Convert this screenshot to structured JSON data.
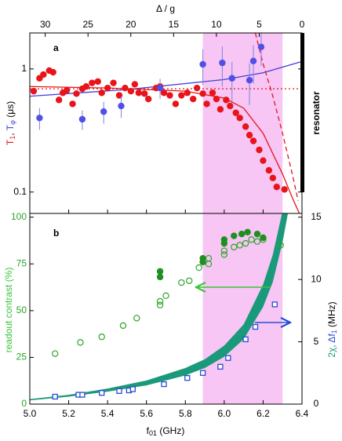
{
  "chart_data": [
    {
      "type": "scatter",
      "panel_label": "a",
      "xlim": [
        5.0,
        6.4
      ],
      "x2label": "Δ / g",
      "x2lim": [
        31.8,
        0
      ],
      "x2ticks": [
        30,
        25,
        20,
        15,
        10,
        5,
        0
      ],
      "ylabel_parts": [
        "T",
        "1",
        ", ",
        "T",
        "φ",
        " (μs)"
      ],
      "y2label": "resonator",
      "log_y": true,
      "ylim": [
        0.067,
        1.96
      ],
      "yticks": [
        0.1,
        1
      ],
      "shade": [
        5.89,
        6.3
      ],
      "shade_color": "#f7c6f4",
      "series": [
        {
          "style": "dotted",
          "color": "#e8141a",
          "x": [
            5.0,
            6.4
          ],
          "values": [
            0.69,
            0.69
          ]
        },
        {
          "style": "line",
          "color": "#4040d8",
          "x": [
            5.0,
            5.5,
            6.0,
            6.2,
            6.4
          ],
          "values": [
            0.6,
            0.68,
            0.82,
            0.93,
            1.15
          ]
        },
        {
          "style": "line",
          "color": "#e8141a",
          "x": [
            5.0,
            5.4,
            5.8,
            6.0,
            6.1,
            6.2,
            6.3,
            6.35,
            6.4
          ],
          "values": [
            0.72,
            0.7,
            0.66,
            0.58,
            0.48,
            0.3,
            0.14,
            0.09,
            0.06
          ]
        },
        {
          "style": "dashed",
          "color": "#e8141a",
          "x": [
            6.16,
            6.2,
            6.25,
            6.3,
            6.35,
            6.38
          ],
          "values": [
            1.96,
            1.1,
            0.6,
            0.3,
            0.14,
            0.085
          ]
        },
        {
          "style": "filled-circle",
          "color": "#e8141a",
          "x": [
            5.02,
            5.05,
            5.07,
            5.1,
            5.12,
            5.15,
            5.17,
            5.19,
            5.22,
            5.24,
            5.27,
            5.29,
            5.32,
            5.35,
            5.37,
            5.4,
            5.43,
            5.46,
            5.49,
            5.52,
            5.54,
            5.56,
            5.59,
            5.61,
            5.65,
            5.67,
            5.69,
            5.72,
            5.75,
            5.78,
            5.81,
            5.84,
            5.86,
            5.89,
            5.91,
            5.94,
            5.96,
            5.98,
            6.01,
            6.03,
            6.06,
            6.08,
            6.11,
            6.13,
            6.15,
            6.18,
            6.2,
            6.23,
            6.25,
            6.27,
            6.31
          ],
          "values": [
            0.66,
            0.84,
            0.9,
            0.97,
            0.94,
            0.56,
            0.64,
            0.67,
            0.52,
            0.63,
            0.69,
            0.72,
            0.77,
            0.79,
            0.64,
            0.7,
            0.77,
            0.61,
            0.7,
            0.66,
            0.75,
            0.64,
            0.63,
            0.57,
            0.7,
            0.72,
            0.64,
            0.61,
            0.52,
            0.61,
            0.64,
            0.57,
            0.7,
            0.63,
            0.52,
            0.64,
            0.57,
            0.47,
            0.56,
            0.5,
            0.44,
            0.4,
            0.34,
            0.29,
            0.26,
            0.22,
            0.18,
            0.15,
            0.13,
            0.11,
            0.105
          ]
        },
        {
          "style": "filled-circle",
          "color": "#5050e8",
          "error_color": "#8080e0",
          "x": [
            5.05,
            5.27,
            5.38,
            5.47,
            5.67,
            5.89,
            5.99,
            6.04,
            6.13,
            6.15,
            6.19
          ],
          "values": [
            0.4,
            0.39,
            0.45,
            0.5,
            0.7,
            1.09,
            1.12,
            0.84,
            0.81,
            1.16,
            1.51
          ],
          "errors": [
            0.08,
            0.07,
            0.09,
            0.1,
            0.13,
            0.35,
            0.4,
            0.3,
            0.3,
            0.4,
            0.45
          ]
        }
      ]
    },
    {
      "type": "scatter",
      "panel_label": "b",
      "xlabel_parts": [
        "f",
        "01",
        " (GHz)"
      ],
      "xlim": [
        5.0,
        6.4
      ],
      "xticks": [
        {
          "value": 5.0,
          "label": "5.0"
        },
        {
          "value": 5.2,
          "label": "5.2"
        },
        {
          "value": 5.4,
          "label": "5.4"
        },
        {
          "value": 5.6,
          "label": "5.6"
        },
        {
          "value": 5.8,
          "label": "5.8"
        },
        {
          "value": 6.0,
          "label": "6.0"
        },
        {
          "value": 6.2,
          "label": "6.2"
        },
        {
          "value": 6.4,
          "label": "6.4"
        }
      ],
      "ylabel": "readout contrast (%)",
      "ylim": [
        0,
        102
      ],
      "yticks": [
        0,
        25,
        50,
        75,
        100
      ],
      "y2label_parts": [
        "2χ",
        ", Δf",
        "1",
        " (MHz)"
      ],
      "y2lim": [
        0,
        15.3
      ],
      "y2ticks": [
        0,
        5,
        10,
        15
      ],
      "shade": [
        5.89,
        6.3
      ],
      "shade_color": "#f7c6f4",
      "series": [
        {
          "style": "band",
          "axis": "y2",
          "color": "#1a9a7a",
          "x": [
            5.0,
            5.2,
            5.4,
            5.6,
            5.8,
            5.9,
            6.0,
            6.1,
            6.2,
            6.25,
            6.3,
            6.33
          ],
          "values": [
            0.3,
            0.6,
            1.0,
            1.5,
            2.3,
            2.9,
            3.8,
            5.2,
            7.8,
            9.8,
            13,
            15.5
          ],
          "upper": [
            0.4,
            0.75,
            1.25,
            1.9,
            2.9,
            3.6,
            4.7,
            6.4,
            9.6,
            12,
            15.5,
            17
          ]
        },
        {
          "style": "open-circle",
          "color": "#2aa52a",
          "x": [
            5.13,
            5.26,
            5.37,
            5.48,
            5.55,
            5.67,
            5.67,
            5.7,
            5.78,
            5.82,
            5.87,
            5.92,
            5.92,
            6.0,
            6.0,
            6.05,
            6.08,
            6.11,
            6.14,
            6.17,
            6.2,
            6.29
          ],
          "values": [
            27,
            33,
            36,
            42,
            46,
            55,
            53,
            58,
            65,
            66,
            73,
            75,
            78,
            82,
            80,
            84,
            85,
            86,
            88,
            87,
            88,
            85
          ]
        },
        {
          "style": "filled-circle",
          "color": "#1f8f1f",
          "x": [
            5.67,
            5.67,
            5.89,
            5.89,
            6.0,
            6.0,
            6.05,
            6.09,
            6.12,
            6.17,
            6.2
          ],
          "values": [
            71,
            68,
            78,
            76,
            88,
            86,
            90,
            91,
            92,
            91,
            89
          ]
        },
        {
          "style": "open-square",
          "axis": "y2",
          "color": "#2a4ad8",
          "x": [
            5.13,
            5.25,
            5.27,
            5.37,
            5.46,
            5.51,
            5.53,
            5.69,
            5.81,
            5.89,
            5.98,
            6.02,
            6.11,
            6.16,
            6.26
          ],
          "values": [
            0.6,
            0.75,
            0.75,
            0.9,
            1.05,
            1.1,
            1.2,
            1.6,
            2.1,
            2.5,
            3.0,
            3.7,
            5.2,
            6.2,
            8.0
          ]
        }
      ]
    }
  ]
}
